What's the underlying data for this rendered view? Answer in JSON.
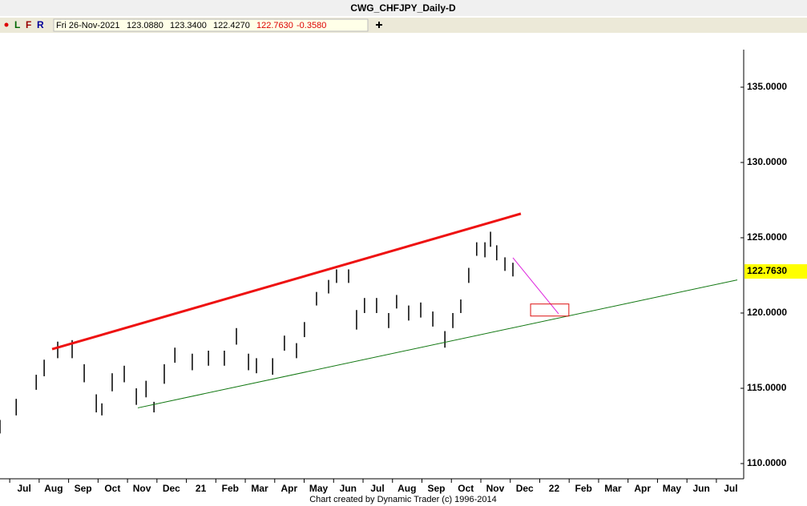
{
  "toolbar": {
    "buttons": [
      "L",
      "F",
      "R"
    ],
    "date": "Fri 26-Nov-2021",
    "open": "123.0880",
    "high": "123.3400",
    "low": "122.4270",
    "close": "122.7630",
    "change": "-0.3580"
  },
  "footer": "Chart created by Dynamic Trader  (c) 1996-2014",
  "chart_data": {
    "type": "ohlc",
    "title": "CWG_CHFJPY_Daily-D",
    "color": "#000000",
    "xlim": [
      -0.82,
      24.22
    ],
    "ylim": [
      108.99,
      138.4
    ],
    "xticks": [
      {
        "value": 0,
        "label": "Jul"
      },
      {
        "value": 1,
        "label": "Aug"
      },
      {
        "value": 2,
        "label": "Sep"
      },
      {
        "value": 3,
        "label": "Oct"
      },
      {
        "value": 4,
        "label": "Nov"
      },
      {
        "value": 5,
        "label": "Dec"
      },
      {
        "value": 6,
        "label": "21"
      },
      {
        "value": 7,
        "label": "Feb"
      },
      {
        "value": 8,
        "label": "Mar"
      },
      {
        "value": 9,
        "label": "Apr"
      },
      {
        "value": 10,
        "label": "May"
      },
      {
        "value": 11,
        "label": "Jun"
      },
      {
        "value": 12,
        "label": "Jul"
      },
      {
        "value": 13,
        "label": "Aug"
      },
      {
        "value": 14,
        "label": "Sep"
      },
      {
        "value": 15,
        "label": "Oct"
      },
      {
        "value": 16,
        "label": "Nov"
      },
      {
        "value": 17,
        "label": "Dec"
      },
      {
        "value": 18,
        "label": "22"
      },
      {
        "value": 19,
        "label": "Feb"
      },
      {
        "value": 20,
        "label": "Mar"
      },
      {
        "value": 21,
        "label": "Apr"
      },
      {
        "value": 22,
        "label": "May"
      },
      {
        "value": 23,
        "label": "Jun"
      },
      {
        "value": 24,
        "label": "Jul"
      }
    ],
    "yticks": [
      {
        "value": 110,
        "label": "110.0000"
      },
      {
        "value": 115,
        "label": "115.0000"
      },
      {
        "value": 120,
        "label": "120.0000"
      },
      {
        "value": 125,
        "label": "125.0000"
      },
      {
        "value": 130,
        "label": "130.0000"
      },
      {
        "value": 135,
        "label": "135.0000"
      }
    ],
    "x": [
      -0.82,
      -0.27,
      0.41,
      0.68,
      1.14,
      1.63,
      2.04,
      2.45,
      2.64,
      2.99,
      3.4,
      3.81,
      4.14,
      4.41,
      4.76,
      5.12,
      5.71,
      6.26,
      6.8,
      7.21,
      7.62,
      7.89,
      8.44,
      8.84,
      9.25,
      9.52,
      9.93,
      10.34,
      10.61,
      11.02,
      11.29,
      11.56,
      11.97,
      12.38,
      12.65,
      13.06,
      13.47,
      13.88,
      14.29,
      14.56,
      14.83,
      15.1,
      15.37,
      15.65,
      15.84,
      16.05,
      16.33,
      16.6
    ],
    "high": [
      112.9,
      114.3,
      115.9,
      116.9,
      118.1,
      118.2,
      116.6,
      114.6,
      114.0,
      116.0,
      116.5,
      115.0,
      115.5,
      114.1,
      116.6,
      117.7,
      117.3,
      117.5,
      117.5,
      119.0,
      117.3,
      117.0,
      117.0,
      118.5,
      118.0,
      119.4,
      121.4,
      122.2,
      122.9,
      122.9,
      120.2,
      121.0,
      121.0,
      120.0,
      121.2,
      120.5,
      120.7,
      120.1,
      118.8,
      120.0,
      120.9,
      123.0,
      124.7,
      124.7,
      125.4,
      124.5,
      123.7,
      123.34
    ],
    "low": [
      112.0,
      113.2,
      114.9,
      115.8,
      117.0,
      117.0,
      115.4,
      113.4,
      113.2,
      114.8,
      115.4,
      113.9,
      114.4,
      113.4,
      115.3,
      116.7,
      116.2,
      116.5,
      116.5,
      117.9,
      116.2,
      116.0,
      115.9,
      117.5,
      117.0,
      118.4,
      120.5,
      121.3,
      122.0,
      122.0,
      118.9,
      120.0,
      120.0,
      119.0,
      120.3,
      119.5,
      119.7,
      119.1,
      117.7,
      119.0,
      120.0,
      122.0,
      123.8,
      123.7,
      124.4,
      123.5,
      122.8,
      122.43
    ],
    "last_price": {
      "value": 122.763,
      "label": "122.7630"
    },
    "trendlines": [
      {
        "color": "#ee1111",
        "x": [
          0.95,
          16.87
        ],
        "y": [
          117.6,
          126.6
        ]
      },
      {
        "color": "#117711",
        "x": [
          3.86,
          24.22
        ],
        "y": [
          113.7,
          122.2
        ]
      },
      {
        "color": "#dd22dd",
        "x": [
          16.6,
          18.15
        ],
        "y": [
          123.67,
          119.95
        ]
      }
    ],
    "target_box": {
      "color": "#dd1111",
      "x": [
        17.2,
        18.5
      ],
      "y": [
        120.6,
        119.8
      ]
    }
  }
}
